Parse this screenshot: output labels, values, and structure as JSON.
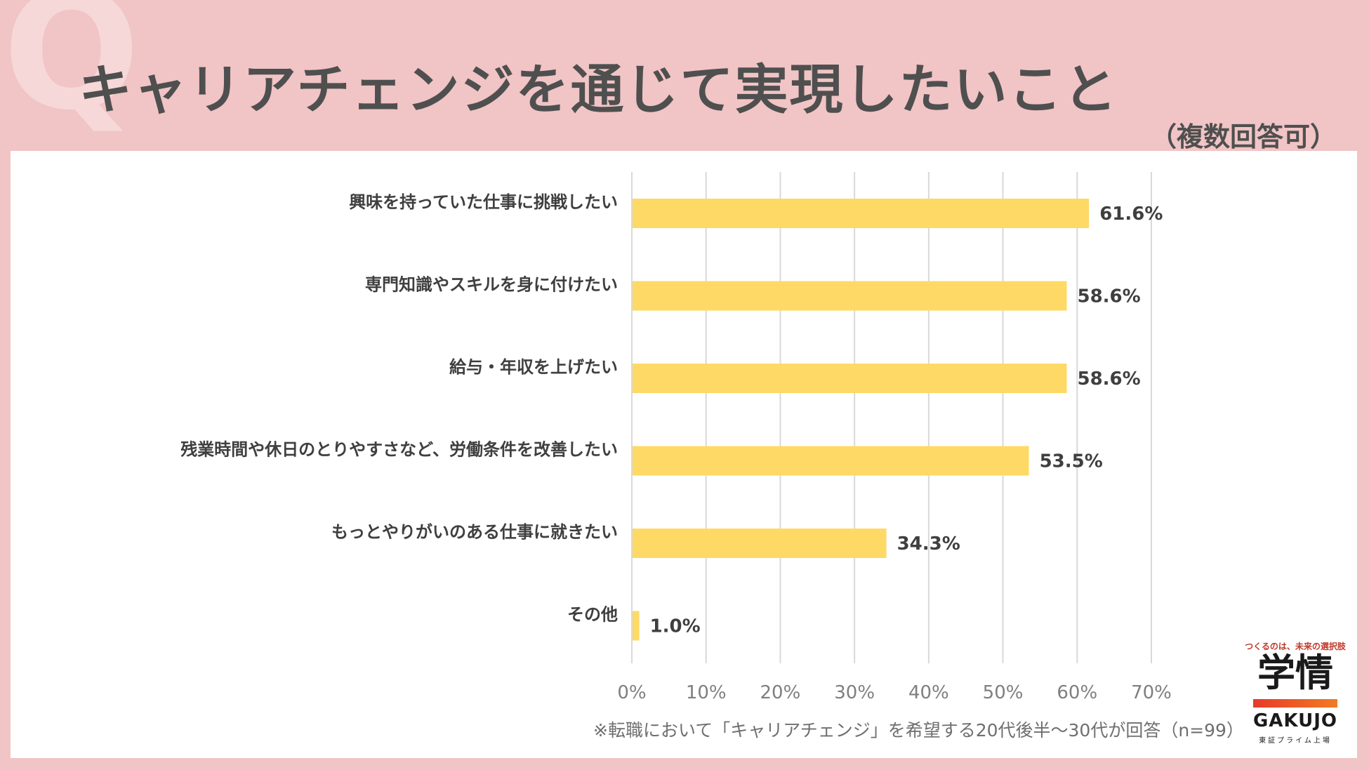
{
  "header": {
    "q_mark": "Q",
    "title": "キャリアチェンジを通じて実現したいこと",
    "subtitle": "（複数回答可）"
  },
  "chart_data": {
    "type": "bar",
    "orientation": "horizontal",
    "categories": [
      "興味を持っていた仕事に挑戦したい",
      "専門知識やスキルを身に付けたい",
      "給与・年収を上げたい",
      "残業時間や休日のとりやすさなど、労働条件を改善したい",
      "もっとやりがいのある仕事に就きたい",
      "その他"
    ],
    "values": [
      61.6,
      58.6,
      58.6,
      53.5,
      34.3,
      1.0
    ],
    "value_labels": [
      "61.6%",
      "58.6%",
      "58.6%",
      "53.5%",
      "34.3%",
      "1.0%"
    ],
    "xlim": [
      0,
      70
    ],
    "xticks": [
      "0%",
      "10%",
      "20%",
      "30%",
      "40%",
      "50%",
      "60%",
      "70%"
    ],
    "grid": true,
    "bar_color": "#ffd966",
    "gridline_color": "#d9d9d9"
  },
  "footnote": "※転職において「キャリアチェンジ」を希望する20代後半～30代が回答（n=99）",
  "logo": {
    "tagline": "つくるのは、未来の選択肢",
    "kanji": "学情",
    "latin": "GAKUJO",
    "sub": "東証プライム上場"
  },
  "colors": {
    "background": "#f1c4c5",
    "panel": "#ffffff",
    "title_text": "#4f4f4f"
  }
}
